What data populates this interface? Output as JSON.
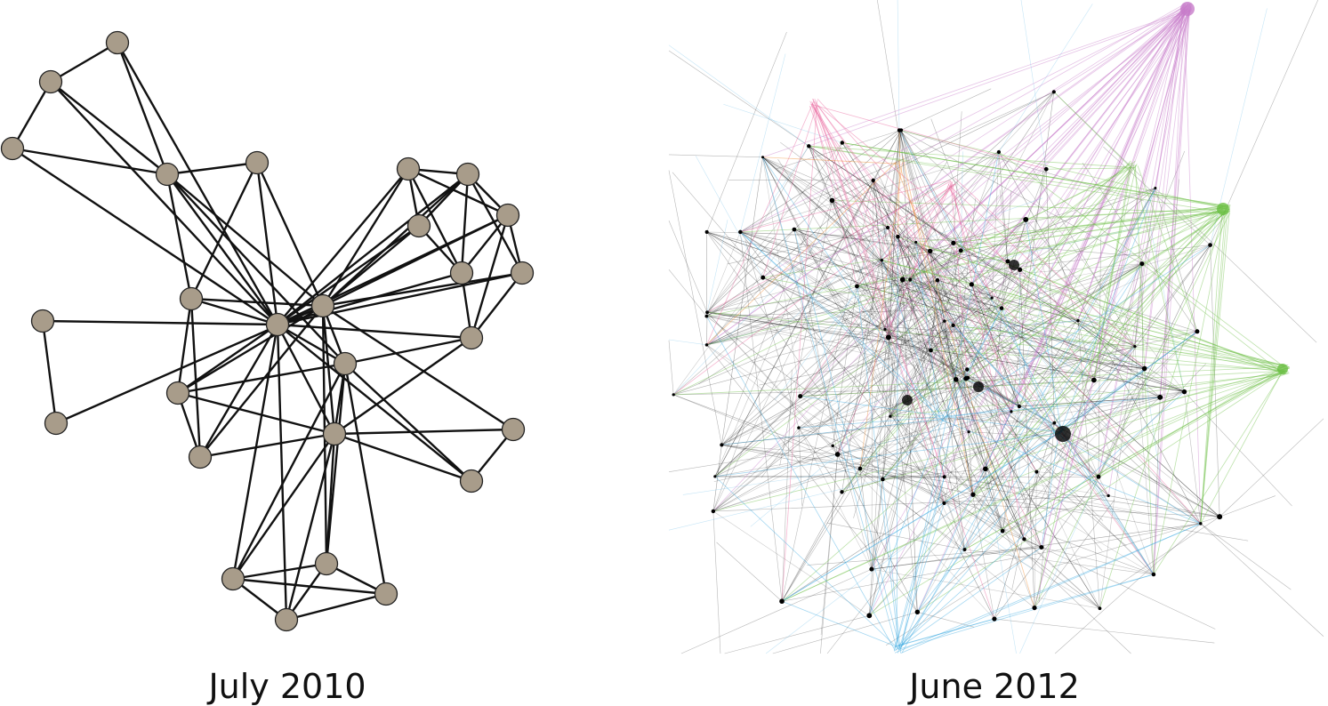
{
  "panels": [
    {
      "caption": "July 2010"
    },
    {
      "caption": "June 2012"
    }
  ]
}
